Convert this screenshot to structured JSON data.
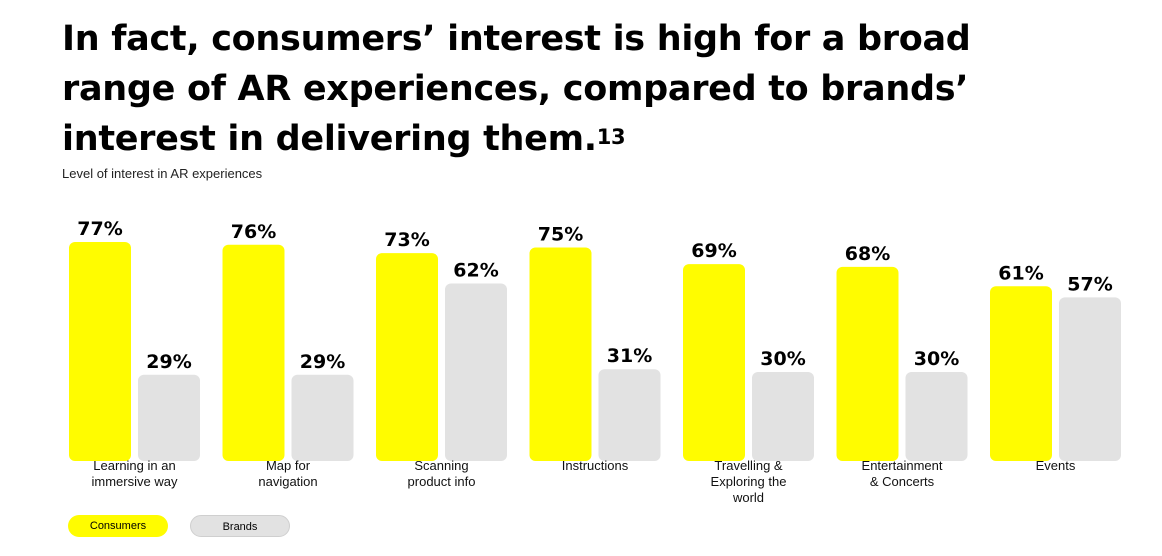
{
  "headline": {
    "text": "In fact, consumers’ interest is high for a broad range of AR experiences, compared to brands’ interest in delivering them.",
    "footnote": "13"
  },
  "chart_data": {
    "type": "bar",
    "title": "Level of interest in AR experiences",
    "categories": [
      [
        "Learning in an",
        "immersive way"
      ],
      [
        "Map for",
        "navigation"
      ],
      [
        "Scanning",
        "product info"
      ],
      [
        "Instructions"
      ],
      [
        "Travelling &",
        "Exploring the",
        "world"
      ],
      [
        "Entertainment",
        "& Concerts"
      ],
      [
        "Events"
      ]
    ],
    "series": [
      {
        "name": "Consumers",
        "color": "#FFFC00",
        "values": [
          77,
          76,
          73,
          75,
          69,
          68,
          61
        ],
        "labels": [
          "77%",
          "76%",
          "73%",
          "75%",
          "69%",
          "68%",
          "61%"
        ]
      },
      {
        "name": "Brands",
        "color": "#E2E2E2",
        "values": [
          29,
          29,
          62,
          31,
          30,
          30,
          57
        ],
        "labels": [
          "29%",
          "29%",
          "62%",
          "31%",
          "30%",
          "30%",
          "57%"
        ]
      }
    ],
    "ylim": [
      0,
      100
    ],
    "grid": false,
    "legend_position": "bottom-left"
  }
}
